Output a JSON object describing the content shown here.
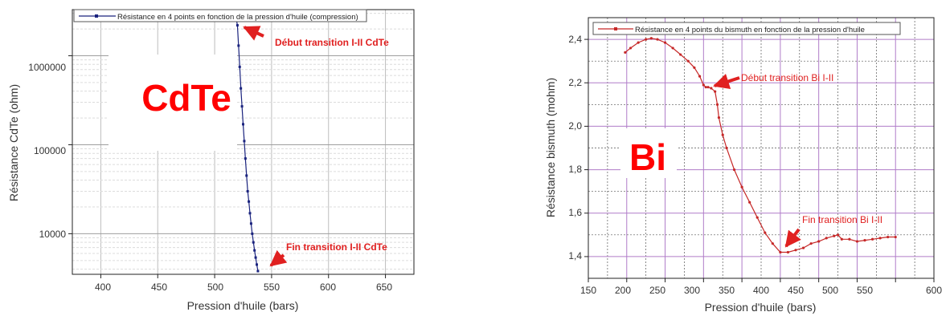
{
  "chart_data": [
    {
      "type": "line",
      "title": "",
      "xlabel": "Pression d'huile (bars)",
      "ylabel": "Résistance CdTe (ohm)",
      "xlim": [
        375,
        675
      ],
      "ylim": [
        3500,
        3300000
      ],
      "yscale": "log",
      "grid": true,
      "legend_position": "top",
      "xticks": [
        "400",
        "450",
        "500",
        "550",
        "600",
        "650"
      ],
      "yticks": [
        "10000",
        "100000",
        "1000000"
      ],
      "series": [
        {
          "name": "Résistance en 4 points en fonction de la pression d'huile (compression)",
          "color": "#1a237e",
          "x": [
            515,
            518,
            520,
            521,
            522,
            523,
            524,
            525,
            526,
            527,
            528,
            529,
            530,
            531,
            532,
            533,
            534,
            535,
            536,
            537,
            538
          ],
          "y": [
            3200000,
            3050000,
            2200000,
            1300000,
            750000,
            430000,
            270000,
            170000,
            110000,
            70000,
            45000,
            30000,
            23000,
            17000,
            13000,
            10000,
            8000,
            6500,
            5400,
            4500,
            3800
          ]
        }
      ],
      "annotations": [
        {
          "text": "Début transition I-II CdTe",
          "color": "#e02020"
        },
        {
          "text": "Fin transition I-II CdTe",
          "color": "#e02020"
        }
      ],
      "overlay_label": {
        "text": "CdTe",
        "color": "#ff0000"
      }
    },
    {
      "type": "line",
      "title": "",
      "xlabel": "Pression d'huile (bars)",
      "ylabel": "Résistance bismuth (mohm)",
      "xlim": [
        150,
        600
      ],
      "ylim": [
        1.3,
        2.5
      ],
      "grid": true,
      "legend_position": "top",
      "xticks": [
        "150",
        "200",
        "250",
        "300",
        "350",
        "400",
        "450",
        "500",
        "550",
        "600"
      ],
      "yticks": [
        "1,4",
        "1,6",
        "1,8",
        "2,0",
        "2,2",
        "2,4"
      ],
      "series": [
        {
          "name": "Résistance en 4 points du bismuth en fonction de la pression d'huile",
          "color": "#c62828",
          "x": [
            198,
            205,
            215,
            225,
            232,
            240,
            250,
            260,
            270,
            280,
            288,
            295,
            300,
            303,
            306,
            310,
            315,
            318,
            320,
            325,
            330,
            340,
            350,
            360,
            370,
            380,
            390,
            400,
            410,
            420,
            430,
            440,
            450,
            460,
            470,
            475,
            480,
            490,
            500,
            510,
            520,
            530,
            540,
            550
          ],
          "y": [
            2.34,
            2.36,
            2.385,
            2.4,
            2.405,
            2.4,
            2.385,
            2.36,
            2.33,
            2.3,
            2.27,
            2.23,
            2.19,
            2.18,
            2.18,
            2.175,
            2.16,
            2.1,
            2.04,
            1.96,
            1.9,
            1.8,
            1.72,
            1.65,
            1.58,
            1.51,
            1.46,
            1.42,
            1.42,
            1.43,
            1.44,
            1.46,
            1.47,
            1.485,
            1.495,
            1.5,
            1.48,
            1.48,
            1.47,
            1.475,
            1.48,
            1.485,
            1.49,
            1.49
          ]
        }
      ],
      "annotations": [
        {
          "text": "Début transition Bi I-II",
          "color": "#e02020"
        },
        {
          "text": "Fin transition Bi I-II",
          "color": "#e02020"
        }
      ],
      "overlay_label": {
        "text": "Bi",
        "color": "#ff0000"
      }
    }
  ]
}
